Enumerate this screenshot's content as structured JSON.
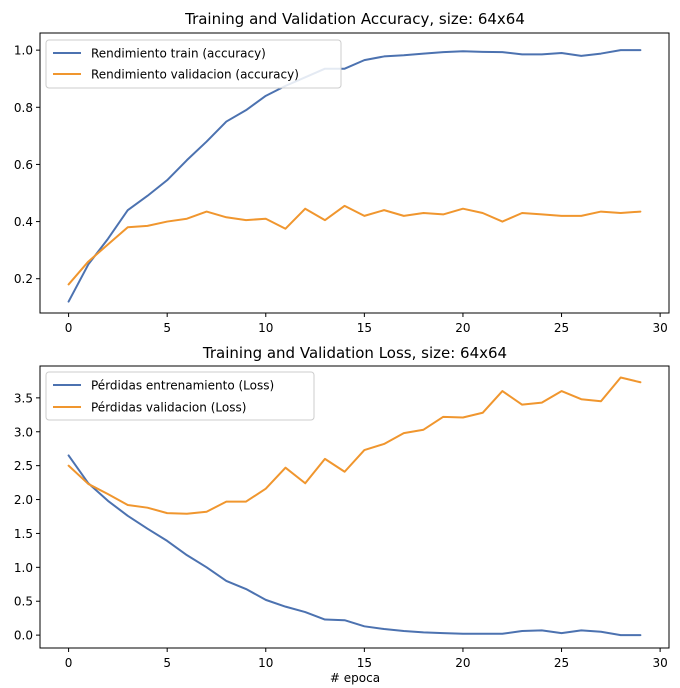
{
  "chart_data": [
    {
      "type": "line",
      "title": "Training and Validation Accuracy, size: 64x64",
      "xlabel": "",
      "ylabel": "",
      "xlim": [
        -1.45,
        30.45
      ],
      "ylim": [
        0.08,
        1.06
      ],
      "xticks": [
        0,
        5,
        10,
        15,
        20,
        25,
        30
      ],
      "yticks": [
        0.2,
        0.4,
        0.6,
        0.8,
        1.0
      ],
      "ytick_labels": [
        "0.2",
        "0.4",
        "0.6",
        "0.8",
        "1.0"
      ],
      "legend_position": "upper-left",
      "x": [
        0,
        1,
        2,
        3,
        4,
        5,
        6,
        7,
        8,
        9,
        10,
        11,
        12,
        13,
        14,
        15,
        16,
        17,
        18,
        19,
        20,
        21,
        22,
        23,
        24,
        25,
        26,
        27,
        28,
        29
      ],
      "series": [
        {
          "name": "Rendimiento train (accuracy)",
          "color": "#4c72b0",
          "values": [
            0.12,
            0.25,
            0.34,
            0.44,
            0.49,
            0.545,
            0.615,
            0.68,
            0.75,
            0.79,
            0.84,
            0.875,
            0.905,
            0.935,
            0.935,
            0.965,
            0.978,
            0.982,
            0.988,
            0.993,
            0.996,
            0.994,
            0.993,
            0.985,
            0.985,
            0.99,
            0.98,
            0.988,
            1.0,
            1.0
          ]
        },
        {
          "name": "Rendimiento validacion (accuracy)",
          "color": "#f0962e",
          "values": [
            0.18,
            0.26,
            0.32,
            0.38,
            0.385,
            0.4,
            0.41,
            0.435,
            0.415,
            0.405,
            0.41,
            0.375,
            0.445,
            0.405,
            0.455,
            0.42,
            0.44,
            0.42,
            0.43,
            0.425,
            0.445,
            0.43,
            0.4,
            0.43,
            0.425,
            0.42,
            0.42,
            0.435,
            0.43,
            0.435
          ]
        }
      ]
    },
    {
      "type": "line",
      "title": "Training and Validation Loss, size: 64x64",
      "xlabel": "# epoca",
      "ylabel": "",
      "xlim": [
        -1.45,
        30.45
      ],
      "ylim": [
        -0.19,
        3.97
      ],
      "xticks": [
        0,
        5,
        10,
        15,
        20,
        25,
        30
      ],
      "yticks": [
        0.0,
        0.5,
        1.0,
        1.5,
        2.0,
        2.5,
        3.0,
        3.5
      ],
      "ytick_labels": [
        "0.0",
        "0.5",
        "1.0",
        "1.5",
        "2.0",
        "2.5",
        "3.0",
        "3.5"
      ],
      "legend_position": "upper-left",
      "x": [
        0,
        1,
        2,
        3,
        4,
        5,
        6,
        7,
        8,
        9,
        10,
        11,
        12,
        13,
        14,
        15,
        16,
        17,
        18,
        19,
        20,
        21,
        22,
        23,
        24,
        25,
        26,
        27,
        28,
        29
      ],
      "series": [
        {
          "name": "Pérdidas entrenamiento (Loss)",
          "color": "#4c72b0",
          "values": [
            2.65,
            2.24,
            1.98,
            1.76,
            1.57,
            1.39,
            1.18,
            1.0,
            0.8,
            0.68,
            0.52,
            0.42,
            0.34,
            0.23,
            0.22,
            0.13,
            0.09,
            0.06,
            0.04,
            0.03,
            0.02,
            0.02,
            0.02,
            0.06,
            0.07,
            0.03,
            0.07,
            0.05,
            0.0,
            0.0
          ]
        },
        {
          "name": "Pérdidas validacion (Loss)",
          "color": "#f0962e",
          "values": [
            2.5,
            2.23,
            2.08,
            1.92,
            1.88,
            1.8,
            1.79,
            1.82,
            1.97,
            1.97,
            2.16,
            2.47,
            2.24,
            2.6,
            2.41,
            2.73,
            2.82,
            2.98,
            3.03,
            3.22,
            3.21,
            3.28,
            3.6,
            3.4,
            3.43,
            3.6,
            3.48,
            3.45,
            3.8,
            3.73
          ]
        }
      ]
    }
  ]
}
